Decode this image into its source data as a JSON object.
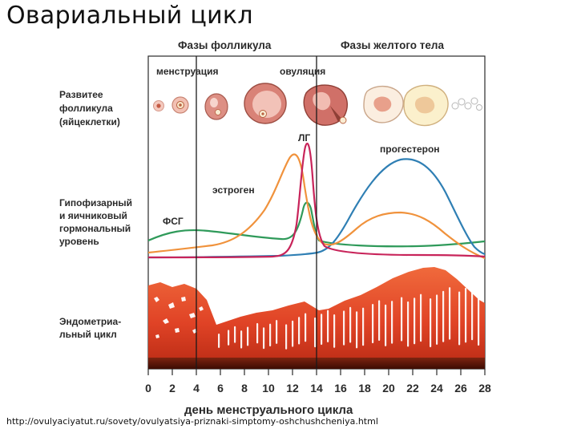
{
  "slide": {
    "title": "Овариальный цикл",
    "source_url": "http://ovulyaciyatut.ru/sovety/ovulyatsiya-priznaki-simptomy-oshchushcheniya.html"
  },
  "diagram": {
    "phase_follicle": "Фазы фолликула",
    "phase_luteal": "Фазы желтого тела",
    "menstruation": "менструация",
    "ovulation": "овуляция",
    "row_follicle": [
      "Развитее",
      "фолликула",
      "(яйцеклетки)"
    ],
    "row_hormones": [
      "Гипофизарный",
      "и яичниковый",
      "гормональный",
      "уровень"
    ],
    "row_endometrium": [
      "Эндометриа-",
      "льный цикл"
    ],
    "hormone_lh": "ЛГ",
    "hormone_progesterone": "прогестерон",
    "hormone_estrogen": "эстроген",
    "hormone_fsh": "ФСГ",
    "x_ticks": [
      "0",
      "2",
      "4",
      "6",
      "8",
      "10",
      "12",
      "14",
      "16",
      "18",
      "20",
      "22",
      "24",
      "26",
      "28"
    ],
    "x_axis_label": "день менструального цикла",
    "colors": {
      "lh": "#c8245a",
      "progesterone": "#2f7fb4",
      "estrogen": "#f0923c",
      "fsh": "#2f9a5a",
      "endometrium": "#e2492b",
      "endometrium_base": "#5e1708"
    }
  }
}
